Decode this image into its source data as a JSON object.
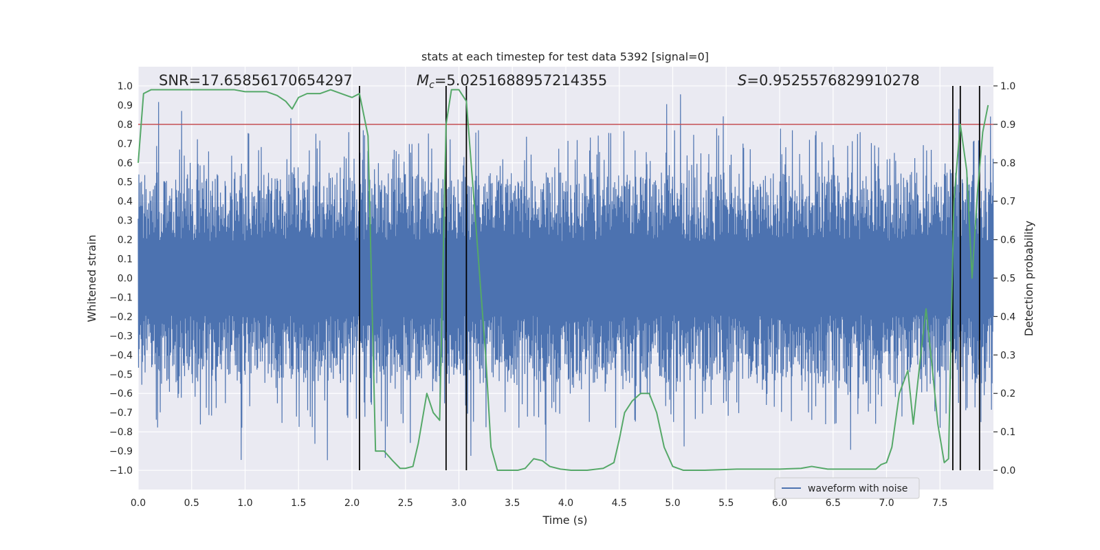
{
  "chart_data": {
    "type": "line",
    "title": "stats at each timestep for test data 5392 [signal=0]",
    "xlabel": "Time (s)",
    "ylabel": "Whitened strain",
    "ylabel_right": "Detection probability",
    "xlim": [
      0,
      8
    ],
    "ylim": [
      -1.1,
      1.1
    ],
    "ylim_right": [
      -0.05,
      1.05
    ],
    "grid": true,
    "legend_position": "bottom-right",
    "x_ticks": [
      "0.0",
      "0.5",
      "1.0",
      "1.5",
      "2.0",
      "2.5",
      "3.0",
      "3.5",
      "4.0",
      "4.5",
      "5.0",
      "5.5",
      "6.0",
      "6.5",
      "7.0",
      "7.5"
    ],
    "y_ticks": [
      "−1.0",
      "−0.9",
      "−0.8",
      "−0.7",
      "−0.6",
      "−0.5",
      "−0.4",
      "−0.3",
      "−0.2",
      "−0.1",
      "0.0",
      "0.1",
      "0.2",
      "0.3",
      "0.4",
      "0.5",
      "0.6",
      "0.7",
      "0.8",
      "0.9",
      "1.0"
    ],
    "y_ticks_right": [
      "0.0",
      "0.1",
      "0.2",
      "0.3",
      "0.4",
      "0.5",
      "0.6",
      "0.7",
      "0.8",
      "0.9",
      "1.0"
    ],
    "annotations": {
      "snr": "SNR=17.65856170654297",
      "mc_symbol": "M",
      "mc_subscript": "c",
      "mc_value": "=5.0251688957214355",
      "s_symbol": "S",
      "s_value": "=0.9525576829910278"
    },
    "threshold_right": 0.9,
    "vertical_lines_x": [
      2.07,
      2.88,
      3.07,
      7.62,
      7.69,
      7.87
    ],
    "series": [
      {
        "name": "waveform with noise",
        "axis": "left",
        "color": "#4c72b0",
        "note": "dense noise samples between about -0.99 and 0.97",
        "envelope_typical": 0.55,
        "envelope_max": 0.97
      },
      {
        "axis": "right",
        "color": "#55a868",
        "x": [
          0.0,
          0.05,
          0.12,
          0.2,
          0.3,
          0.5,
          0.7,
          0.9,
          1.0,
          1.1,
          1.2,
          1.3,
          1.38,
          1.44,
          1.5,
          1.58,
          1.7,
          1.8,
          1.9,
          2.0,
          2.07,
          2.15,
          2.22,
          2.3,
          2.38,
          2.45,
          2.5,
          2.57,
          2.62,
          2.7,
          2.76,
          2.82,
          2.88,
          2.93,
          3.0,
          3.07,
          3.15,
          3.25,
          3.3,
          3.36,
          3.45,
          3.55,
          3.62,
          3.7,
          3.78,
          3.85,
          3.95,
          4.05,
          4.2,
          4.35,
          4.45,
          4.5,
          4.55,
          4.62,
          4.7,
          4.78,
          4.85,
          4.92,
          5.0,
          5.1,
          5.3,
          5.6,
          6.0,
          6.2,
          6.3,
          6.45,
          6.6,
          6.8,
          6.9,
          6.95,
          7.0,
          7.05,
          7.12,
          7.2,
          7.25,
          7.32,
          7.37,
          7.43,
          7.48,
          7.54,
          7.58,
          7.63,
          7.69,
          7.75,
          7.8,
          7.85,
          7.9,
          7.95
        ],
        "values": [
          0.8,
          0.98,
          0.99,
          0.99,
          0.99,
          0.99,
          0.99,
          0.99,
          0.985,
          0.985,
          0.985,
          0.975,
          0.96,
          0.94,
          0.97,
          0.98,
          0.98,
          0.99,
          0.98,
          0.97,
          0.98,
          0.87,
          0.05,
          0.05,
          0.025,
          0.005,
          0.005,
          0.01,
          0.07,
          0.2,
          0.15,
          0.13,
          0.9,
          0.99,
          0.99,
          0.96,
          0.67,
          0.3,
          0.06,
          0.0,
          0.0,
          0.0,
          0.005,
          0.03,
          0.025,
          0.01,
          0.003,
          0.0,
          0.0,
          0.005,
          0.02,
          0.08,
          0.15,
          0.18,
          0.2,
          0.2,
          0.15,
          0.06,
          0.01,
          0.0,
          0.0,
          0.003,
          0.003,
          0.005,
          0.01,
          0.003,
          0.003,
          0.003,
          0.003,
          0.015,
          0.02,
          0.06,
          0.2,
          0.26,
          0.12,
          0.3,
          0.42,
          0.26,
          0.12,
          0.02,
          0.03,
          0.7,
          0.9,
          0.78,
          0.5,
          0.72,
          0.88,
          0.95
        ]
      }
    ]
  }
}
